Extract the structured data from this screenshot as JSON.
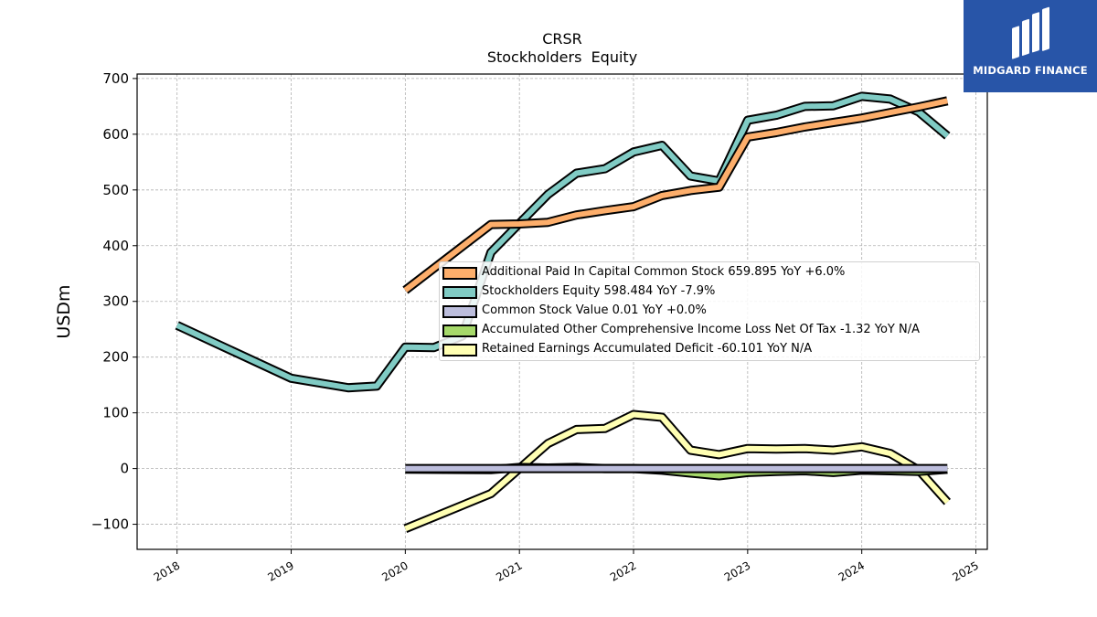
{
  "chart_data": {
    "type": "line",
    "title": "CRSR",
    "subtitle": "Stockholders  Equity",
    "ylabel": "USDm",
    "xlabel": "",
    "ylim": [
      -145,
      708
    ],
    "xlim": [
      2017.65,
      2025.1
    ],
    "yticks": [
      700,
      600,
      500,
      400,
      300,
      200,
      100,
      0,
      -100
    ],
    "ytick_labels": [
      "700",
      "600",
      "500",
      "400",
      "300",
      "200",
      "100",
      "0",
      "−100"
    ],
    "xticks": [
      "2018",
      "2019",
      "2020",
      "2021",
      "2022",
      "2023",
      "2024",
      "2025"
    ],
    "grid": true,
    "legend_position": "center-right",
    "series": [
      {
        "name": "Additional Paid In Capital Common Stock",
        "legend_label": "Additional Paid In Capital Common Stock  659.895 YoY +6.0%",
        "color": "#fdae6b",
        "points": [
          [
            2020.0,
            320
          ],
          [
            2020.75,
            438
          ],
          [
            2021.0,
            439
          ],
          [
            2021.25,
            442
          ],
          [
            2021.5,
            455
          ],
          [
            2021.75,
            463
          ],
          [
            2022.0,
            470
          ],
          [
            2022.25,
            490
          ],
          [
            2022.5,
            499
          ],
          [
            2022.75,
            505
          ],
          [
            2023.0,
            595
          ],
          [
            2023.25,
            603
          ],
          [
            2023.5,
            613
          ],
          [
            2023.75,
            621
          ],
          [
            2024.0,
            629
          ],
          [
            2024.25,
            639
          ],
          [
            2024.5,
            649
          ],
          [
            2024.75,
            660
          ]
        ]
      },
      {
        "name": "Stockholders Equity",
        "legend_label": "Stockholders Equity  598.484 YoY -7.9%",
        "color": "#80cbc4",
        "points": [
          [
            2018.0,
            257
          ],
          [
            2019.0,
            162
          ],
          [
            2019.5,
            145
          ],
          [
            2019.75,
            148
          ],
          [
            2020.0,
            218
          ],
          [
            2020.25,
            217
          ],
          [
            2020.5,
            238
          ],
          [
            2020.75,
            388
          ],
          [
            2021.0,
            440
          ],
          [
            2021.25,
            492
          ],
          [
            2021.5,
            530
          ],
          [
            2021.75,
            538
          ],
          [
            2022.0,
            568
          ],
          [
            2022.25,
            580
          ],
          [
            2022.5,
            525
          ],
          [
            2022.75,
            516
          ],
          [
            2023.0,
            625
          ],
          [
            2023.25,
            634
          ],
          [
            2023.5,
            650
          ],
          [
            2023.75,
            651
          ],
          [
            2024.0,
            668
          ],
          [
            2024.25,
            663
          ],
          [
            2024.5,
            640
          ],
          [
            2024.75,
            597
          ]
        ]
      },
      {
        "name": "Common Stock Value",
        "legend_label": "Common Stock Value  0.01 YoY +0.0%",
        "color": "#bcbddc",
        "points": [
          [
            2020.0,
            0.01
          ],
          [
            2020.75,
            0.01
          ],
          [
            2021.0,
            0.01
          ],
          [
            2022.0,
            0.01
          ],
          [
            2023.0,
            0.01
          ],
          [
            2024.0,
            0.01
          ],
          [
            2024.75,
            0.01
          ]
        ]
      },
      {
        "name": "Accumulated Other Comprehensive Income Loss Net Of Tax",
        "legend_label": "Accumulated Other Comprehensive Income Loss Net Of Tax  -1.32 YoY N/A",
        "color": "#a6d96a",
        "points": [
          [
            2020.0,
            -1
          ],
          [
            2020.75,
            -2
          ],
          [
            2021.0,
            2
          ],
          [
            2021.25,
            1
          ],
          [
            2021.5,
            2
          ],
          [
            2021.75,
            0
          ],
          [
            2022.0,
            0
          ],
          [
            2022.25,
            -3
          ],
          [
            2022.5,
            -8
          ],
          [
            2022.75,
            -13
          ],
          [
            2023.0,
            -7
          ],
          [
            2023.25,
            -5
          ],
          [
            2023.5,
            -4
          ],
          [
            2023.75,
            -7
          ],
          [
            2024.0,
            -3
          ],
          [
            2024.25,
            -4
          ],
          [
            2024.5,
            -5
          ],
          [
            2024.75,
            -1.32
          ]
        ]
      },
      {
        "name": "Retained Earnings Accumulated Deficit",
        "legend_label": "Retained Earnings Accumulated Deficit  -60.101 YoY N/A",
        "color": "#ffffb3",
        "points": [
          [
            2020.0,
            -108
          ],
          [
            2020.75,
            -45
          ],
          [
            2021.0,
            0
          ],
          [
            2021.25,
            45
          ],
          [
            2021.5,
            70
          ],
          [
            2021.75,
            72
          ],
          [
            2022.0,
            97
          ],
          [
            2022.25,
            92
          ],
          [
            2022.5,
            33
          ],
          [
            2022.75,
            25
          ],
          [
            2023.0,
            36
          ],
          [
            2023.25,
            35
          ],
          [
            2023.5,
            36
          ],
          [
            2023.75,
            33
          ],
          [
            2024.0,
            39
          ],
          [
            2024.25,
            27
          ],
          [
            2024.5,
            -3
          ],
          [
            2024.75,
            -60.1
          ]
        ]
      }
    ]
  },
  "logo": {
    "text": "MIDGARD FINANCE",
    "icon": "midgard-logo-icon",
    "background": "#2855a8"
  }
}
